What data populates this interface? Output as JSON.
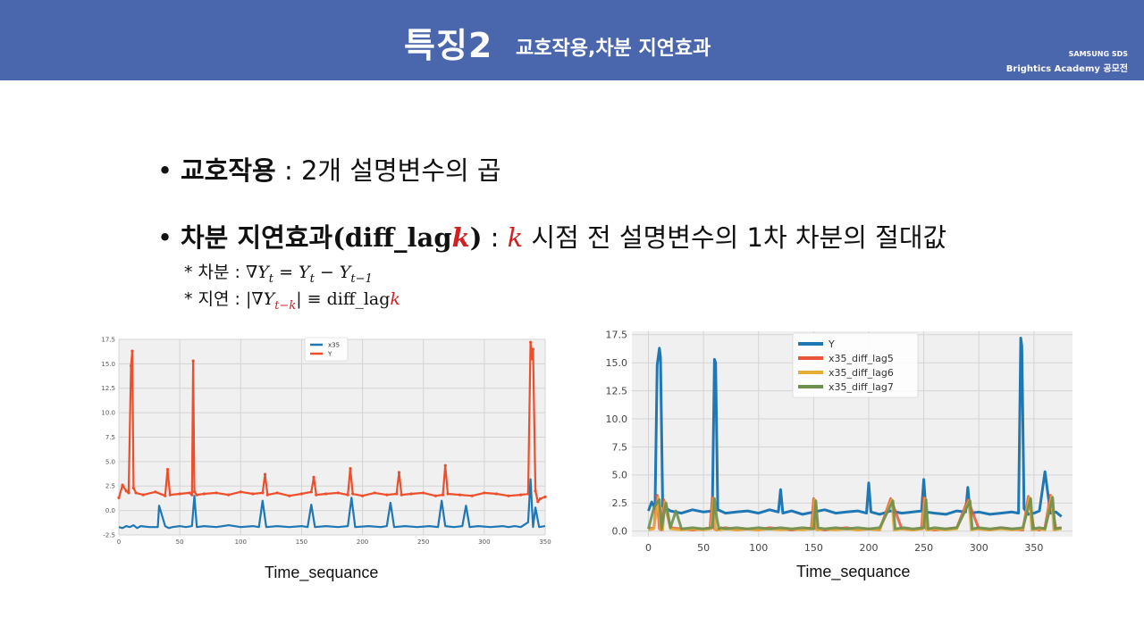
{
  "header": {
    "title": "특징2",
    "subtitle": "교호작용,차분 지연효과",
    "brand_line1": "SAMSUNG SDS",
    "brand_line2": "Brightics Academy 공모전"
  },
  "bullets": {
    "b1_term": "교호작용",
    "b1_sep": " : ",
    "b1_desc": "2개 설명변수의 곱",
    "b2_term": "차분 지연효과",
    "b2_paren_open": "(diff_lag",
    "b2_k": "k",
    "b2_paren_close": ")",
    "b2_sep": " : ",
    "b2_k2": "k",
    "b2_desc": " 시점 전 설명변수의 1차 차분의 절대값"
  },
  "notes": {
    "n1_label": "* 차분 : ",
    "n1_formula": "∇Y",
    "n1_sub_t": "t",
    "n1_eq": " = Y",
    "n1_sub_t2": "t",
    "n1_minus": " − Y",
    "n1_sub_t1": "t−1",
    "n2_label": "* 지연 : ",
    "n2_open": "|∇Y",
    "n2_sub": "t−k",
    "n2_close": "| ≡ diff_lag",
    "n2_k": "k"
  },
  "captions": {
    "left": "Time_sequance",
    "right": "Time_sequance"
  },
  "chart_data": [
    {
      "type": "line",
      "title": "",
      "xlabel": "",
      "ylabel": "",
      "xlim": [
        0,
        350
      ],
      "ylim": [
        -2.5,
        17.5
      ],
      "x_ticks": [
        0,
        50,
        100,
        150,
        200,
        250,
        300,
        350
      ],
      "y_ticks": [
        -2.5,
        0.0,
        2.5,
        5.0,
        7.5,
        10.0,
        12.5,
        15.0,
        17.5
      ],
      "grid": true,
      "legend": "top-center",
      "series": [
        {
          "name": "x35",
          "color": "#1f77b4",
          "x": [
            0,
            3,
            6,
            9,
            12,
            15,
            18,
            25,
            32,
            33,
            38,
            41,
            44,
            50,
            55,
            60,
            62,
            64,
            70,
            80,
            90,
            100,
            110,
            115,
            118,
            121,
            130,
            140,
            150,
            155,
            158,
            161,
            170,
            180,
            188,
            191,
            194,
            205,
            215,
            220,
            223,
            226,
            235,
            245,
            255,
            262,
            265,
            268,
            275,
            282,
            285,
            288,
            295,
            305,
            315,
            320,
            325,
            330,
            336,
            338,
            340,
            342,
            345,
            350
          ],
          "values": [
            -1.7,
            -1.8,
            -1.6,
            -1.7,
            -1.5,
            -1.8,
            -1.6,
            -1.7,
            -1.7,
            0.5,
            -1.6,
            -1.8,
            -1.7,
            -1.6,
            -1.7,
            -1.6,
            1.5,
            -1.7,
            -1.6,
            -1.7,
            -1.5,
            -1.7,
            -1.6,
            -1.7,
            1.0,
            -1.7,
            -1.6,
            -1.7,
            -1.6,
            -1.7,
            0.6,
            -1.7,
            -1.6,
            -1.7,
            -1.6,
            1.3,
            -1.7,
            -1.6,
            -1.7,
            -1.6,
            0.8,
            -1.7,
            -1.6,
            -1.7,
            -1.6,
            -1.7,
            1.0,
            -1.6,
            -1.7,
            -1.6,
            0.5,
            -1.7,
            -1.6,
            -1.7,
            -1.6,
            -1.7,
            -1.6,
            -1.7,
            -1.2,
            3.2,
            -1.7,
            0.3,
            -1.7,
            -1.6
          ]
        },
        {
          "name": "Y",
          "color": "#ee4e2b",
          "x": [
            0,
            3,
            6,
            8,
            10,
            11,
            12,
            14,
            20,
            30,
            38,
            40,
            42,
            50,
            58,
            60,
            61,
            62,
            64,
            70,
            80,
            90,
            100,
            110,
            118,
            120,
            122,
            130,
            140,
            150,
            158,
            160,
            162,
            170,
            180,
            188,
            190,
            192,
            200,
            210,
            220,
            228,
            230,
            232,
            240,
            250,
            260,
            266,
            268,
            270,
            280,
            290,
            300,
            310,
            320,
            330,
            336,
            338,
            339,
            340,
            342,
            344,
            346,
            350
          ],
          "values": [
            1.3,
            2.6,
            2.0,
            1.8,
            14.8,
            16.3,
            2.3,
            1.8,
            1.6,
            1.9,
            1.5,
            4.2,
            1.6,
            1.7,
            1.8,
            1.6,
            15.3,
            1.9,
            1.6,
            1.7,
            1.8,
            1.6,
            1.9,
            1.7,
            1.8,
            3.7,
            1.6,
            1.8,
            1.5,
            1.7,
            1.9,
            3.4,
            1.6,
            1.7,
            1.8,
            1.6,
            4.3,
            1.7,
            1.5,
            1.8,
            1.6,
            1.7,
            3.9,
            1.6,
            1.7,
            1.8,
            1.5,
            1.6,
            4.6,
            1.7,
            1.6,
            1.5,
            1.8,
            1.7,
            1.5,
            1.6,
            1.7,
            17.2,
            15.5,
            16.5,
            2.0,
            0.9,
            1.2,
            1.4
          ]
        }
      ]
    },
    {
      "type": "line",
      "title": "",
      "xlabel": "",
      "ylabel": "",
      "xlim": [
        -15,
        385
      ],
      "ylim": [
        -0.5,
        17.8
      ],
      "x_ticks": [
        0,
        50,
        100,
        150,
        200,
        250,
        300,
        350
      ],
      "y_ticks": [
        0.0,
        2.5,
        5.0,
        7.5,
        10.0,
        12.5,
        15.0,
        17.5
      ],
      "grid": true,
      "legend": "top-center",
      "series": [
        {
          "name": "Y",
          "color": "#1f77b4",
          "x": [
            0,
            3,
            6,
            8,
            10,
            11,
            13,
            20,
            30,
            40,
            50,
            58,
            60,
            61,
            63,
            70,
            80,
            90,
            100,
            110,
            118,
            120,
            122,
            130,
            140,
            150,
            160,
            170,
            180,
            190,
            198,
            200,
            202,
            210,
            220,
            230,
            240,
            248,
            250,
            252,
            260,
            270,
            280,
            288,
            290,
            292,
            300,
            310,
            320,
            330,
            336,
            338,
            339,
            341,
            345,
            350,
            355,
            360,
            365,
            370,
            375
          ],
          "values": [
            1.8,
            2.6,
            2.0,
            14.8,
            16.3,
            15.5,
            2.2,
            1.8,
            1.6,
            1.9,
            1.7,
            1.8,
            15.3,
            15.0,
            1.9,
            1.6,
            1.7,
            1.8,
            1.6,
            1.9,
            1.7,
            3.7,
            1.6,
            1.8,
            1.5,
            1.7,
            1.9,
            1.6,
            1.7,
            1.8,
            1.6,
            4.3,
            1.7,
            1.5,
            1.8,
            1.6,
            1.7,
            1.8,
            4.6,
            1.7,
            1.6,
            1.5,
            1.8,
            1.7,
            3.9,
            1.6,
            1.7,
            1.5,
            1.6,
            1.7,
            1.6,
            17.2,
            16.5,
            2.0,
            1.5,
            1.6,
            1.8,
            5.3,
            1.6,
            1.7,
            1.3
          ]
        },
        {
          "name": "x35_diff_lag5",
          "color": "#e8553a",
          "x": [
            0,
            5,
            8,
            10,
            12,
            14,
            20,
            30,
            40,
            50,
            56,
            58,
            60,
            62,
            64,
            70,
            80,
            90,
            100,
            110,
            120,
            130,
            140,
            148,
            150,
            152,
            160,
            170,
            180,
            190,
            200,
            210,
            220,
            230,
            240,
            248,
            250,
            252,
            260,
            270,
            280,
            290,
            300,
            310,
            320,
            330,
            340,
            345,
            350,
            355,
            360,
            365,
            370,
            375
          ],
          "values": [
            0.2,
            0.3,
            3.2,
            0.2,
            0.1,
            2.8,
            0.3,
            0.2,
            0.1,
            0.2,
            0.3,
            3.0,
            0.2,
            0.1,
            0.2,
            0.3,
            0.1,
            0.2,
            0.1,
            0.3,
            0.2,
            0.1,
            0.2,
            0.3,
            2.9,
            0.2,
            0.1,
            0.2,
            0.3,
            0.1,
            0.2,
            0.1,
            2.9,
            0.2,
            0.1,
            0.2,
            3.0,
            0.2,
            0.1,
            0.2,
            0.3,
            2.8,
            0.2,
            0.1,
            0.3,
            0.2,
            0.1,
            3.1,
            0.2,
            0.1,
            0.3,
            3.2,
            0.2,
            0.3
          ]
        },
        {
          "name": "x35_diff_lag6",
          "color": "#e5ae38",
          "x": [
            0,
            5,
            9,
            11,
            13,
            15,
            20,
            30,
            40,
            50,
            57,
            59,
            61,
            63,
            65,
            70,
            80,
            90,
            100,
            110,
            120,
            130,
            140,
            149,
            151,
            153,
            160,
            170,
            180,
            190,
            200,
            210,
            221,
            223,
            231,
            240,
            249,
            251,
            253,
            260,
            270,
            280,
            291,
            293,
            300,
            310,
            320,
            330,
            340,
            346,
            348,
            355,
            360,
            366,
            368,
            375
          ],
          "values": [
            0.1,
            0.2,
            3.0,
            0.2,
            0.1,
            2.6,
            0.2,
            0.1,
            0.2,
            0.1,
            0.2,
            2.9,
            0.1,
            0.2,
            0.1,
            0.2,
            0.1,
            0.2,
            0.1,
            0.2,
            0.1,
            0.2,
            0.1,
            0.2,
            2.8,
            0.1,
            0.2,
            0.1,
            0.2,
            0.1,
            0.2,
            0.1,
            2.8,
            0.1,
            0.2,
            0.1,
            0.2,
            2.9,
            0.1,
            0.2,
            0.1,
            0.2,
            2.7,
            0.1,
            0.2,
            0.1,
            0.2,
            0.1,
            0.2,
            3.0,
            0.1,
            0.2,
            0.1,
            3.1,
            0.1,
            0.2
          ]
        },
        {
          "name": "x35_diff_lag7",
          "color": "#6d904f",
          "x": [
            0,
            5,
            10,
            12,
            14,
            16,
            20,
            25,
            30,
            40,
            50,
            58,
            60,
            62,
            64,
            66,
            70,
            80,
            90,
            100,
            110,
            120,
            130,
            140,
            150,
            152,
            154,
            160,
            170,
            180,
            190,
            200,
            210,
            222,
            224,
            232,
            240,
            250,
            252,
            254,
            260,
            270,
            280,
            292,
            294,
            300,
            310,
            320,
            330,
            340,
            347,
            349,
            355,
            360,
            367,
            369,
            375
          ],
          "values": [
            0.2,
            2.1,
            2.8,
            0.2,
            1.5,
            2.5,
            0.3,
            1.8,
            0.2,
            0.3,
            0.2,
            0.3,
            2.9,
            1.2,
            0.2,
            0.3,
            0.2,
            0.3,
            0.2,
            0.3,
            0.2,
            0.3,
            0.2,
            0.3,
            0.2,
            2.7,
            0.3,
            0.2,
            0.3,
            0.2,
            0.3,
            0.2,
            0.3,
            2.7,
            0.2,
            0.3,
            0.2,
            0.3,
            2.8,
            0.2,
            0.3,
            0.2,
            0.3,
            2.7,
            0.2,
            0.3,
            0.2,
            0.3,
            0.2,
            0.3,
            2.9,
            0.2,
            0.3,
            0.2,
            3.0,
            0.2,
            0.3
          ]
        }
      ]
    }
  ]
}
